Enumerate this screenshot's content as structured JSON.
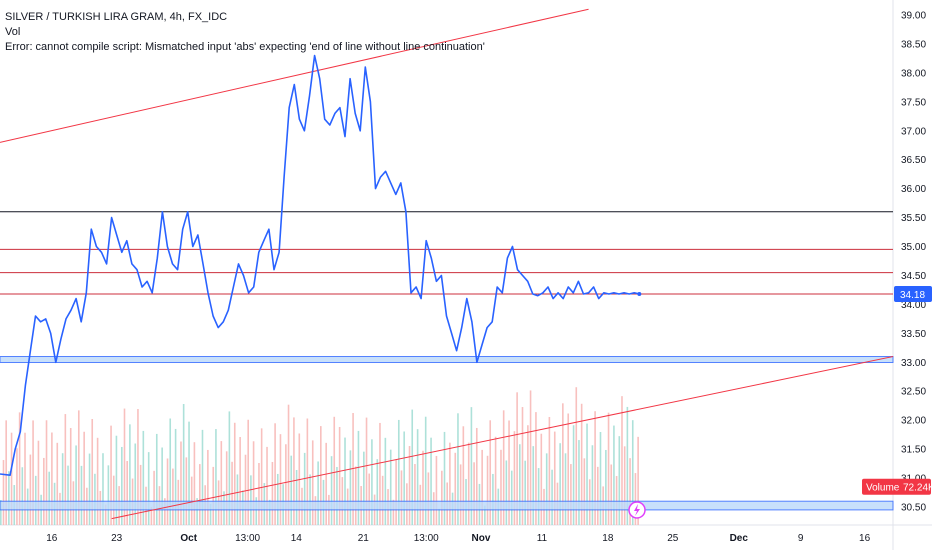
{
  "legend": {
    "symbol_line": "SILVER / TURKISH LIRA GRAM, 4h, FX_IDC",
    "volume_line": "Vol",
    "error_line": "Error: cannot compile script: Mismatched input 'abs' expecting 'end of line without line continuation'"
  },
  "price_badge": "34.18",
  "volume_badge": {
    "label": "Volume",
    "value": "72.24K"
  },
  "colors": {
    "price_line": "#2962ff",
    "up_volume": "#9fdcd2",
    "down_volume": "#f7b5b3",
    "trend_line": "#f23645",
    "level_line": "#cc2f3c",
    "black_level": "#131722",
    "zone_fill": "#bbd9fb",
    "zone_border": "#2962ff"
  },
  "chart_data": {
    "type": "line",
    "title": "SILVER / TURKISH LIRA GRAM, 4h, FX_IDC",
    "y_range": [
      30.5,
      39.0
    ],
    "y_ticks": [
      "39.00",
      "38.50",
      "38.00",
      "37.50",
      "37.00",
      "36.50",
      "36.00",
      "35.50",
      "35.00",
      "34.50",
      "34.00",
      "33.50",
      "33.00",
      "32.50",
      "32.00",
      "31.50",
      "31.00",
      "30.50"
    ],
    "x_range": [
      0,
      88
    ],
    "x_ticks": [
      {
        "x": 5.1,
        "label": "16",
        "bold": false
      },
      {
        "x": 11.5,
        "label": "23",
        "bold": false
      },
      {
        "x": 18.6,
        "label": "Oct",
        "bold": true
      },
      {
        "x": 24.4,
        "label": "13:00",
        "bold": false
      },
      {
        "x": 29.2,
        "label": "14",
        "bold": false
      },
      {
        "x": 35.8,
        "label": "21",
        "bold": false
      },
      {
        "x": 42.0,
        "label": "13:00",
        "bold": false
      },
      {
        "x": 47.4,
        "label": "Nov",
        "bold": true
      },
      {
        "x": 53.4,
        "label": "11",
        "bold": false
      },
      {
        "x": 59.9,
        "label": "18",
        "bold": false
      },
      {
        "x": 66.3,
        "label": "25",
        "bold": false
      },
      {
        "x": 72.8,
        "label": "Dec",
        "bold": true
      },
      {
        "x": 78.9,
        "label": "9",
        "bold": false
      },
      {
        "x": 85.2,
        "label": "16",
        "bold": false
      }
    ],
    "series": [
      {
        "type": "line",
        "x": [
          0,
          1,
          1.5,
          2,
          2.5,
          3,
          3.5,
          4,
          4.5,
          5,
          5.5,
          6,
          6.5,
          7,
          7.5,
          8,
          8.5,
          9,
          9.5,
          10,
          10.5,
          11,
          11.5,
          12,
          12.5,
          13,
          13.5,
          14,
          14.5,
          15,
          15.5,
          16,
          16.5,
          17,
          17.5,
          18,
          18.5,
          19,
          19.5,
          20,
          20.5,
          21,
          21.5,
          22,
          22.5,
          23,
          23.5,
          24,
          24.5,
          25,
          25.5,
          26,
          26.5,
          27,
          27.5,
          28,
          28.5,
          29,
          29.5,
          30,
          30.5,
          31,
          31.5,
          32,
          32.5,
          33,
          33.5,
          34,
          34.5,
          35,
          35.5,
          36,
          36.5,
          37,
          37.5,
          38,
          38.5,
          39,
          39.5,
          40,
          40.5,
          41,
          41.5,
          42,
          42.5,
          43,
          43.5,
          44,
          44.5,
          45,
          45.5,
          46,
          46.5,
          47,
          47.5,
          48,
          48.5,
          49,
          49.5,
          50,
          50.5,
          51,
          51.5,
          52,
          52.5,
          53,
          53.5,
          54,
          54.5,
          55,
          55.5,
          56,
          56.5,
          57,
          57.5,
          58,
          58.5,
          59,
          59.5,
          60,
          60.5,
          61,
          61.5,
          62,
          62.5,
          63
        ],
        "values": [
          31.07,
          31.05,
          31.5,
          31.8,
          32.6,
          33.2,
          33.8,
          33.7,
          33.75,
          33.5,
          33.0,
          33.4,
          33.75,
          33.9,
          34.1,
          33.7,
          34.2,
          35.3,
          35.0,
          34.9,
          34.7,
          35.5,
          35.2,
          34.9,
          35.1,
          34.7,
          34.6,
          34.3,
          34.4,
          34.2,
          34.8,
          35.6,
          35.0,
          34.7,
          34.6,
          35.3,
          35.6,
          35.0,
          35.2,
          34.7,
          34.2,
          33.8,
          33.6,
          33.7,
          33.9,
          34.3,
          34.7,
          34.5,
          34.2,
          34.3,
          34.9,
          35.1,
          35.3,
          34.6,
          34.9,
          36.2,
          37.4,
          37.8,
          37.2,
          37.0,
          37.6,
          38.3,
          37.9,
          37.2,
          37.1,
          37.3,
          37.4,
          36.9,
          37.9,
          37.3,
          37.0,
          38.1,
          37.5,
          36.0,
          36.2,
          36.3,
          36.1,
          35.9,
          36.1,
          35.6,
          34.2,
          34.3,
          34.1,
          35.1,
          34.8,
          34.4,
          34.5,
          33.8,
          33.5,
          33.2,
          33.6,
          34.1,
          33.7,
          33.0,
          33.3,
          33.6,
          33.7,
          34.3,
          34.2,
          34.8,
          35.0,
          34.6,
          34.5,
          34.4,
          34.18,
          34.15,
          34.2,
          34.3,
          34.1,
          34.2,
          34.1,
          34.3,
          34.2,
          34.4,
          34.18,
          34.2,
          34.3,
          34.1,
          34.2,
          34.18,
          34.2,
          34.18,
          34.2,
          34.18,
          34.2,
          34.18
        ]
      }
    ],
    "horizontal_levels": [
      35.6,
      34.95,
      34.55,
      34.18
    ],
    "support_zones": [
      [
        33.0,
        33.1
      ],
      [
        30.45,
        30.6
      ]
    ],
    "trend_lines": [
      {
        "from": [
          0,
          36.8
        ],
        "to": [
          58,
          39.1
        ]
      },
      {
        "from": [
          11,
          30.3
        ],
        "to": [
          88,
          33.1
        ]
      }
    ]
  }
}
